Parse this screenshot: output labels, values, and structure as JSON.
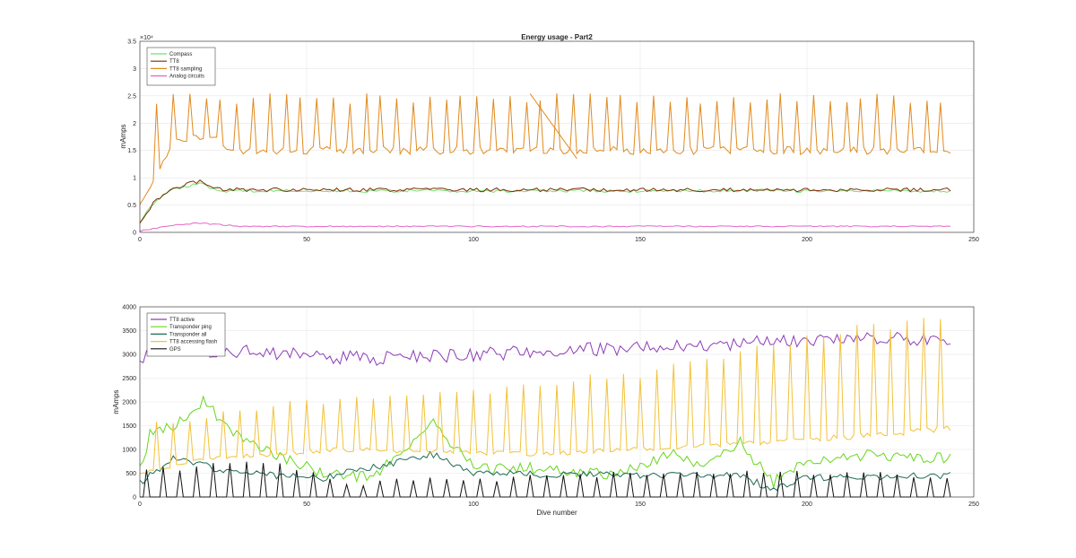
{
  "figure": {
    "title": "Energy usage - Part2"
  },
  "chart_data": [
    {
      "type": "line",
      "title": "Energy usage - Part2",
      "xlabel": "",
      "ylabel": "mAmps",
      "xlim": [
        0,
        250
      ],
      "ylim": [
        0,
        35000
      ],
      "exponent_label": "×10⁴",
      "xticks": [
        0,
        50,
        100,
        150,
        200,
        250
      ],
      "yticks": [
        0,
        5000,
        10000,
        15000,
        20000,
        25000,
        30000,
        35000
      ],
      "ytick_labels": [
        "0",
        "0.5",
        "1",
        "1.5",
        "2",
        "2.5",
        "3",
        "3.5"
      ],
      "grid": true,
      "legend_position": "top-left",
      "series": [
        {
          "name": "Compass",
          "color": "#77dd77",
          "kind": "level",
          "base": 7200,
          "noise": 600,
          "ramp": [
            [
              0,
              2000
            ],
            [
              5,
              6000
            ],
            [
              10,
              8000
            ],
            [
              18,
              8800
            ],
            [
              25,
              7600
            ]
          ]
        },
        {
          "name": "TT8",
          "color": "#7a2b00",
          "kind": "level",
          "base": 7400,
          "noise": 700,
          "ramp": [
            [
              0,
              2000
            ],
            [
              5,
              6000
            ],
            [
              10,
              8200
            ],
            [
              18,
              9400
            ],
            [
              25,
              7800
            ]
          ]
        },
        {
          "name": "TT8 sampling",
          "color": "#e08a1e",
          "kind": "spiky",
          "base": 14500,
          "spike": 24500,
          "period": 4.8,
          "ramp": [
            [
              0,
              5000
            ],
            [
              6,
              12000
            ],
            [
              10,
              17000
            ],
            [
              20,
              18000
            ],
            [
              28,
              15000
            ]
          ],
          "extra": [
            [
              117,
              25400
            ],
            [
              131,
              13500
            ]
          ]
        },
        {
          "name": "Analog circuits",
          "color": "#e466c7",
          "kind": "level",
          "base": 1000,
          "noise": 250,
          "ramp": [
            [
              0,
              200
            ],
            [
              8,
              1200
            ],
            [
              18,
              1700
            ],
            [
              30,
              1100
            ]
          ]
        }
      ]
    },
    {
      "type": "line",
      "title": "",
      "xlabel": "Dive number",
      "ylabel": "mAmps",
      "xlim": [
        0,
        250
      ],
      "ylim": [
        0,
        4000
      ],
      "xticks": [
        0,
        50,
        100,
        150,
        200,
        250
      ],
      "yticks": [
        0,
        500,
        1000,
        1500,
        2000,
        2500,
        3000,
        3500,
        4000
      ],
      "grid": true,
      "legend_position": "top-left",
      "series": [
        {
          "name": "TT8 active",
          "color": "#8e3cb8",
          "kind": "level",
          "base": 3200,
          "noise": 300,
          "ramp": [
            [
              0,
              2900
            ],
            [
              5,
              3150
            ],
            [
              70,
              2900
            ],
            [
              200,
              3300
            ],
            [
              245,
              3350
            ]
          ]
        },
        {
          "name": "Transponder ping",
          "color": "#66d61c",
          "kind": "level",
          "base": 900,
          "noise": 250,
          "ramp": [
            [
              0,
              600
            ],
            [
              3,
              1300
            ],
            [
              10,
              1500
            ],
            [
              19,
              2000
            ],
            [
              28,
              1400
            ],
            [
              40,
              900
            ],
            [
              55,
              500
            ],
            [
              70,
              400
            ],
            [
              88,
              1600
            ],
            [
              100,
              600
            ],
            [
              120,
              600
            ],
            [
              140,
              500
            ],
            [
              160,
              900
            ],
            [
              170,
              600
            ],
            [
              180,
              1150
            ],
            [
              190,
              300
            ],
            [
              200,
              800
            ],
            [
              220,
              900
            ],
            [
              240,
              800
            ]
          ]
        },
        {
          "name": "Transponder all",
          "color": "#1e6b55",
          "kind": "level",
          "base": 500,
          "noise": 150,
          "ramp": [
            [
              0,
              300
            ],
            [
              10,
              800
            ],
            [
              20,
              650
            ],
            [
              30,
              500
            ],
            [
              55,
              400
            ],
            [
              88,
              900
            ],
            [
              100,
              500
            ],
            [
              150,
              450
            ],
            [
              180,
              450
            ],
            [
              190,
              150
            ],
            [
              200,
              400
            ],
            [
              245,
              450
            ]
          ]
        },
        {
          "name": "TT8 accessing flash",
          "color": "#f2c23a",
          "kind": "spiky",
          "base": 900,
          "spike": 1300,
          "period": 5,
          "ramp": [
            [
              0,
              500
            ],
            [
              20,
              800
            ],
            [
              60,
              1000
            ],
            [
              120,
              900
            ],
            [
              200,
              1200
            ],
            [
              245,
              1450
            ]
          ],
          "spike_ramp": [
            [
              0,
              1500
            ],
            [
              50,
              2000
            ],
            [
              100,
              2200
            ],
            [
              150,
              2600
            ],
            [
              200,
              3300
            ],
            [
              245,
              3900
            ]
          ]
        },
        {
          "name": "GPS",
          "color": "#111111",
          "kind": "pulse",
          "base": 0,
          "spike": 600,
          "period": 5,
          "spike_ramp": [
            [
              0,
              500
            ],
            [
              20,
              700
            ],
            [
              40,
              800
            ],
            [
              60,
              300
            ],
            [
              120,
              400
            ],
            [
              180,
              550
            ],
            [
              245,
              400
            ]
          ]
        }
      ]
    }
  ]
}
